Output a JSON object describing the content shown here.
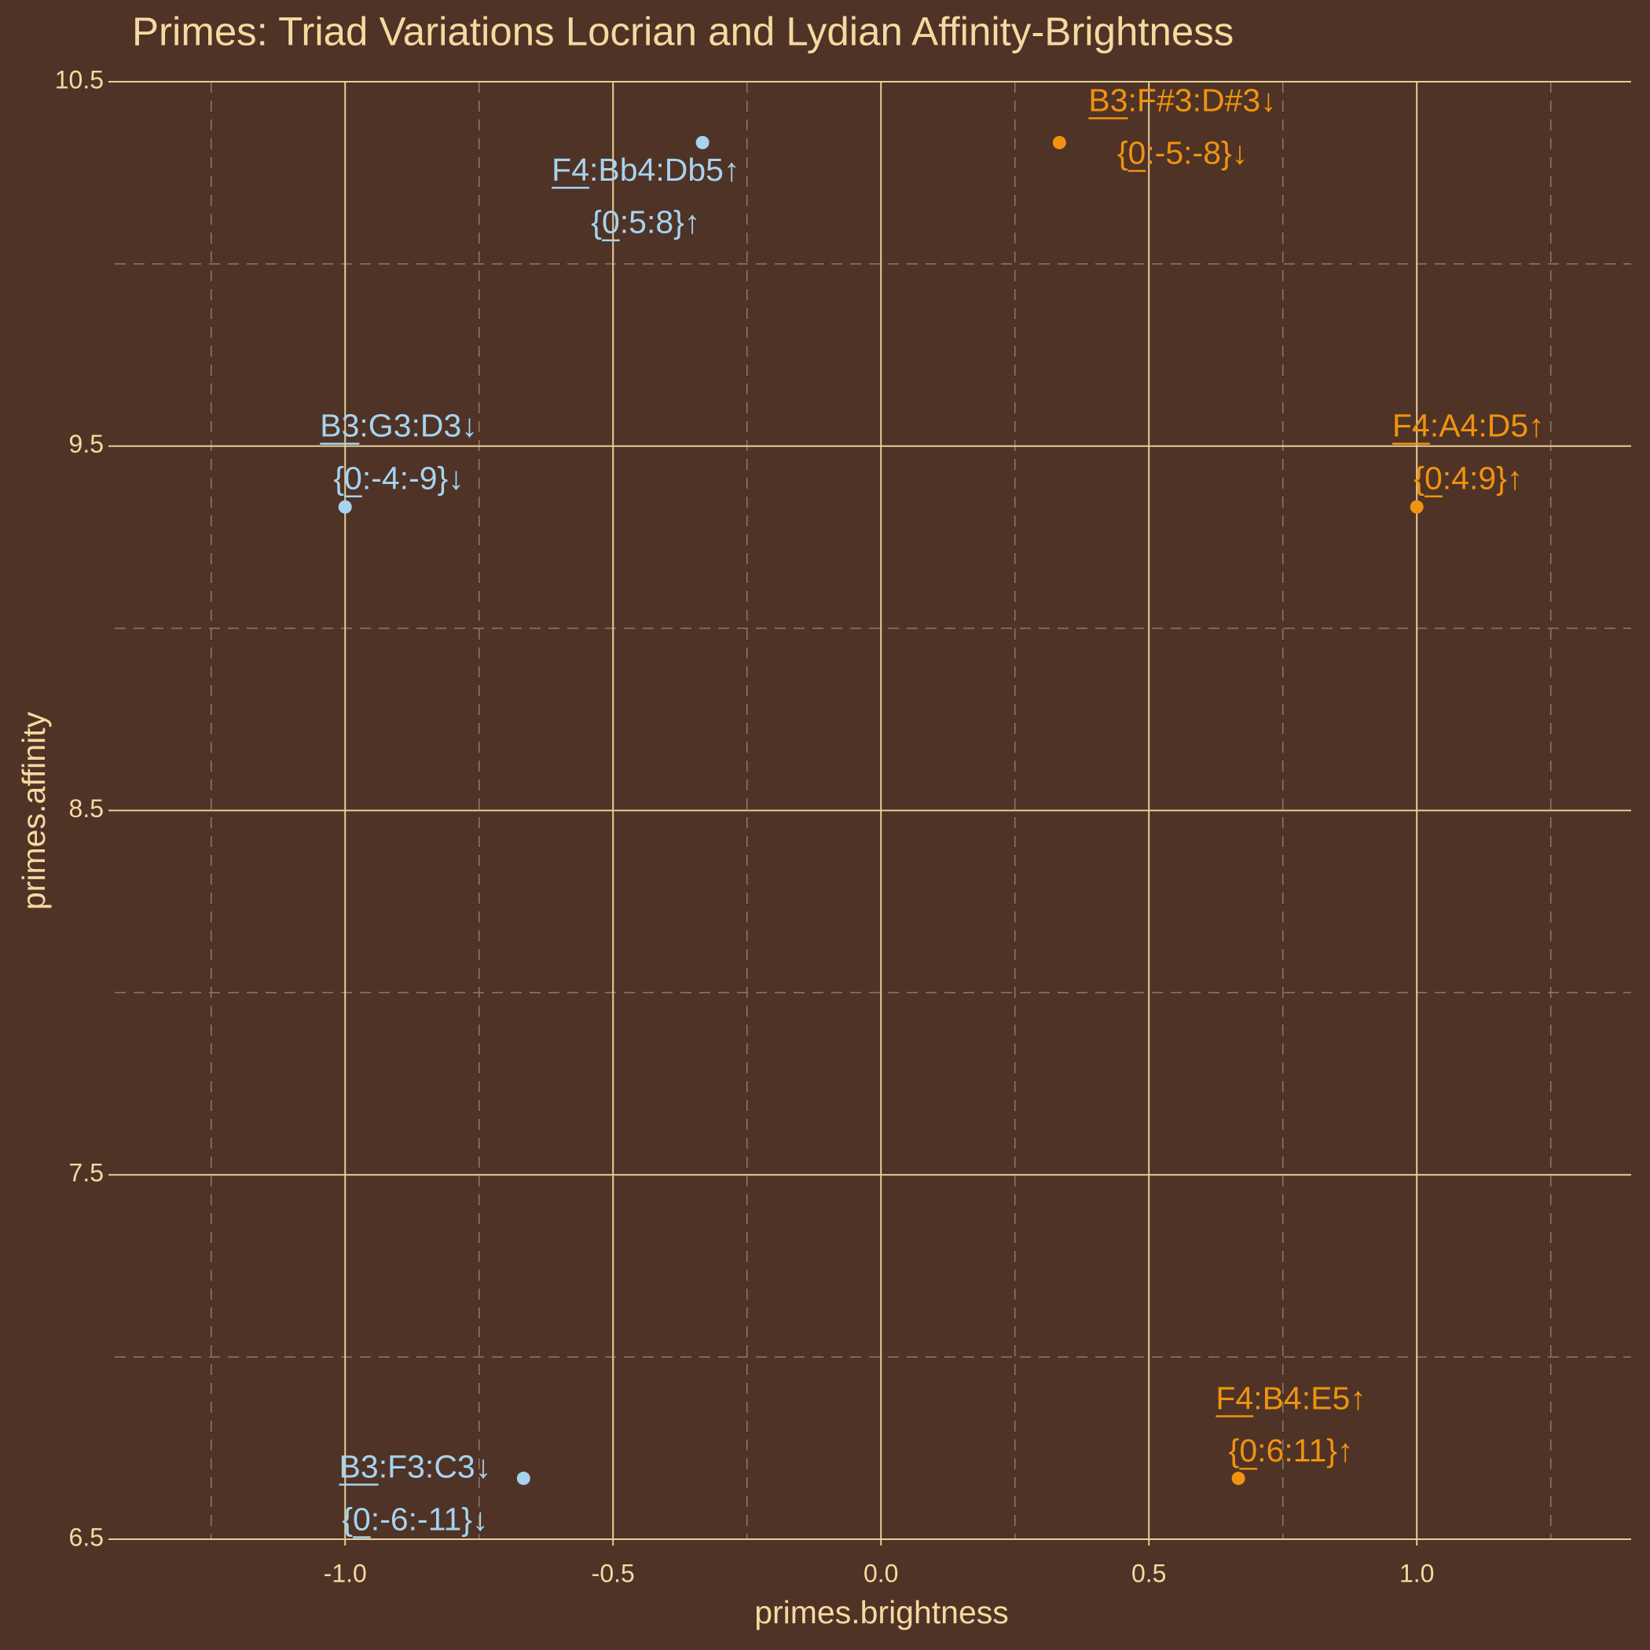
{
  "chart_data": {
    "type": "scatter",
    "title": "Primes: Triad Variations Locrian and Lydian Affinity-Brightness",
    "x_label": "primes.brightness",
    "y_label": "primes.affinity",
    "xlim": [
      -1.43,
      1.4
    ],
    "ylim": [
      6.5,
      10.5
    ],
    "xticks": [
      {
        "value": -1,
        "label": "-1.0"
      },
      -0.5,
      {
        "value": 0,
        "label": "0.0"
      },
      0.5,
      {
        "value": 1,
        "label": "1.0"
      }
    ],
    "yticks": [
      6.5,
      7.5,
      8.5,
      9.5,
      10.5
    ],
    "xminorticks": [
      -1.25,
      -0.75,
      -0.25,
      0.25,
      0.75,
      1.25
    ],
    "yminorticks": [
      7,
      8,
      9,
      10
    ],
    "grid": true,
    "series": [
      {
        "color": "#a6d3ef",
        "x": [
          -0.333,
          -1,
          -0.667
        ],
        "values": [
          10.333,
          9.333,
          6.667
        ],
        "point_labels": [
          [
            "F4:Bb4:Db5↑",
            "{0:5:8}↑"
          ],
          [
            "B3:G3:D3↓",
            "{0:-4:-9}↓"
          ],
          [
            "B3:F3:C3↓",
            "{0:-6:-11}↓"
          ]
        ]
      },
      {
        "color": "#f0930f",
        "x": [
          0.333,
          1,
          0.667
        ],
        "values": [
          10.333,
          9.333,
          6.667
        ],
        "point_labels": [
          [
            "B3:F#3:D#3↓",
            "{0:-5:-8}↓"
          ],
          [
            "F4:A4:D5↑",
            "{0:4:9}↑"
          ],
          [
            "F4:B4:E5↑",
            "{0:6:11}↑"
          ]
        ]
      }
    ]
  }
}
